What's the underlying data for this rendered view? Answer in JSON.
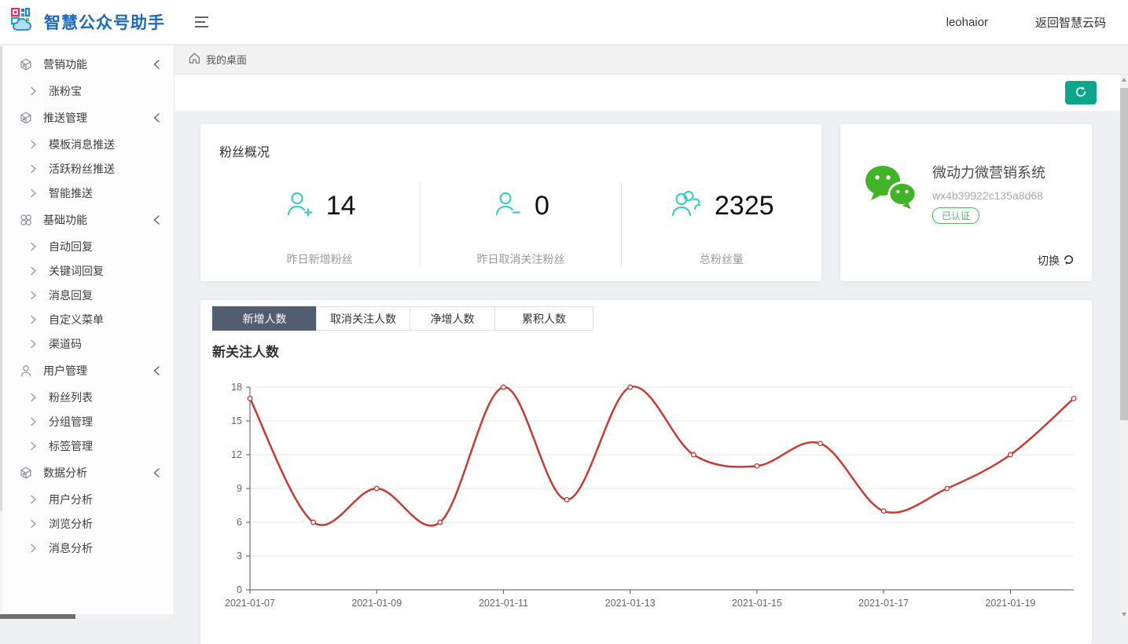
{
  "header": {
    "logo_text": "智慧公众号助手",
    "username": "leohaior",
    "back_link": "返回智慧云码"
  },
  "breadcrumb": {
    "home_label": "我的桌面"
  },
  "sidebar": {
    "groups": [
      {
        "label": "营销功能",
        "icon": "cube-icon",
        "items": [
          "涨粉宝"
        ]
      },
      {
        "label": "推送管理",
        "icon": "cube-icon",
        "items": [
          "模板消息推送",
          "活跃粉丝推送",
          "智能推送"
        ]
      },
      {
        "label": "基础功能",
        "icon": "grid-icon",
        "items": [
          "自动回复",
          "关键词回复",
          "消息回复",
          "自定义菜单",
          "渠道码"
        ]
      },
      {
        "label": "用户管理",
        "icon": "user-icon",
        "items": [
          "粉丝列表",
          "分组管理",
          "标签管理"
        ]
      },
      {
        "label": "数据分析",
        "icon": "cube-icon",
        "items": [
          "用户分析",
          "浏览分析",
          "消息分析"
        ]
      }
    ]
  },
  "overview": {
    "title": "粉丝概况",
    "stats": [
      {
        "value": "14",
        "label": "昨日新增粉丝",
        "icon": "user-plus-icon"
      },
      {
        "value": "0",
        "label": "昨日取消关注粉丝",
        "icon": "user-minus-icon"
      },
      {
        "value": "2325",
        "label": "总粉丝量",
        "icon": "users-icon"
      }
    ]
  },
  "account_card": {
    "name": "微动力微营销系统",
    "app_id": "wx4b39922c135a8d68",
    "verified_badge": "已认证",
    "switch_label": "切换"
  },
  "tabs": [
    {
      "id": "tab-new-followers",
      "label": "新增人数",
      "active": true
    },
    {
      "id": "tab-unfollowers",
      "label": "取消关注人数",
      "active": false
    },
    {
      "id": "tab-net-increase",
      "label": "净增人数",
      "active": false
    },
    {
      "id": "tab-total-cumulative",
      "label": "累积人数",
      "active": false
    }
  ],
  "chart_data": {
    "type": "line",
    "title": "新关注人数",
    "x": [
      "2021-01-07",
      "2021-01-08",
      "2021-01-09",
      "2021-01-10",
      "2021-01-11",
      "2021-01-12",
      "2021-01-13",
      "2021-01-14",
      "2021-01-15",
      "2021-01-16",
      "2021-01-17",
      "2021-01-18",
      "2021-01-19",
      "2021-01-20"
    ],
    "values": [
      17,
      6,
      9,
      6,
      18,
      8,
      18,
      12,
      11,
      13,
      7,
      9,
      12,
      17
    ],
    "x_tick_labels": [
      "2021-01-07",
      "2021-01-09",
      "2021-01-11",
      "2021-01-13",
      "2021-01-15",
      "2021-01-17",
      "2021-01-19"
    ],
    "y_ticks": [
      0,
      3,
      6,
      9,
      12,
      15,
      18
    ],
    "ylim": [
      0,
      18
    ],
    "xlabel": "",
    "ylabel": "",
    "grid": true,
    "smooth": true,
    "legend": "none",
    "line_color": "#cb3a32",
    "marker": "open-circle"
  },
  "colors": {
    "accent_teal": "#36cfc9",
    "refresh_button": "#0ca78b",
    "tab_active_bg": "#535d70",
    "wechat_green": "#41b426",
    "badge_green": "#51b963",
    "logo_blue": "#1b6ac0",
    "line_red": "#cb3a32"
  }
}
